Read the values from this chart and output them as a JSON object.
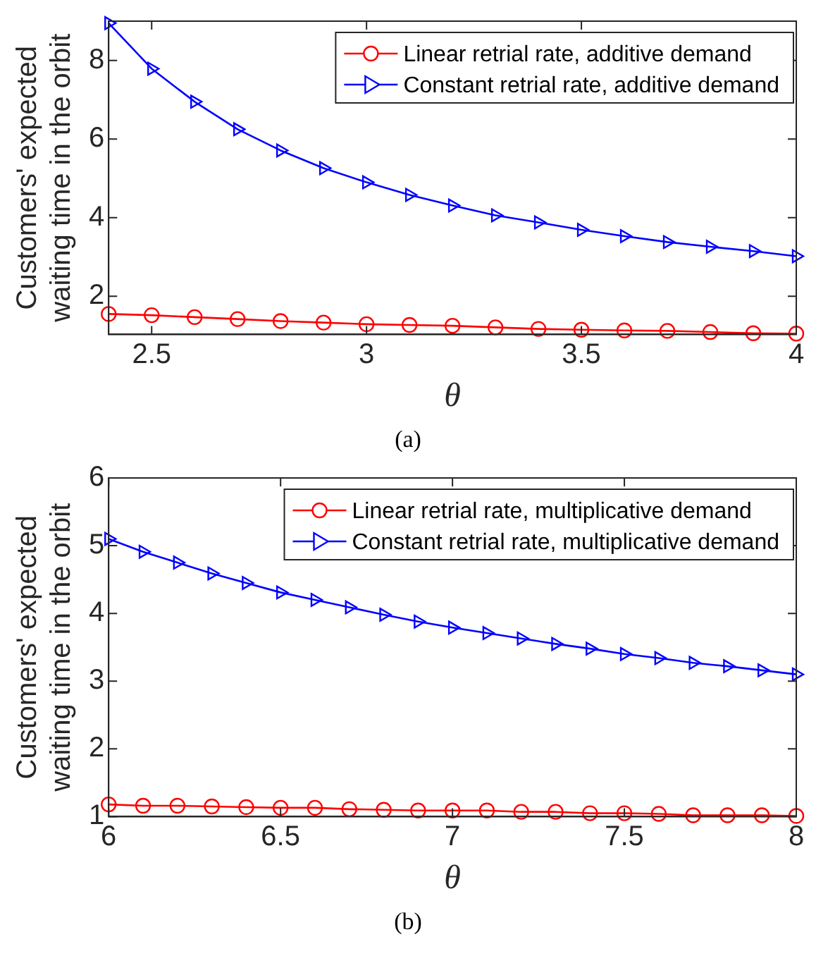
{
  "chart_data": [
    {
      "type": "line",
      "xlabel": "θ",
      "ylabel": "Customers' expected waiting time in the orbit",
      "annotations": [
        "(a)"
      ],
      "x": [
        2.4,
        2.5,
        2.6,
        2.7,
        2.8,
        2.9,
        3.0,
        3.1,
        3.2,
        3.3,
        3.4,
        3.5,
        3.6,
        3.7,
        3.8,
        3.9,
        4.0
      ],
      "xlim": [
        2.4,
        4
      ],
      "xticks": [
        2.5,
        3,
        3.5,
        4
      ],
      "ylim": [
        1.03,
        9
      ],
      "yticks": [
        2,
        4,
        6,
        8
      ],
      "grid": false,
      "legend": "top right",
      "line_style": "solid",
      "series": [
        {
          "name": "Linear retrial rate, additive demand",
          "color": "#ff0000",
          "marker": "circle",
          "values": [
            1.55,
            1.52,
            1.47,
            1.42,
            1.37,
            1.33,
            1.29,
            1.27,
            1.25,
            1.21,
            1.17,
            1.15,
            1.13,
            1.12,
            1.09,
            1.06,
            1.05
          ]
        },
        {
          "name": "Constant retrial rate, additive demand",
          "color": "#0000ff",
          "marker": "triangle",
          "values": [
            8.95,
            7.79,
            6.95,
            6.25,
            5.71,
            5.26,
            4.9,
            4.58,
            4.31,
            4.06,
            3.88,
            3.69,
            3.53,
            3.38,
            3.26,
            3.15,
            3.02
          ]
        }
      ]
    },
    {
      "type": "line",
      "xlabel": "θ",
      "ylabel": "Customers' expected waiting time in the orbit",
      "annotations": [
        "(b)"
      ],
      "x": [
        6.0,
        6.1,
        6.2,
        6.3,
        6.4,
        6.5,
        6.6,
        6.7,
        6.8,
        6.9,
        7.0,
        7.1,
        7.2,
        7.3,
        7.4,
        7.5,
        7.6,
        7.7,
        7.8,
        7.9,
        8.0
      ],
      "xlim": [
        6,
        8
      ],
      "xticks": [
        6,
        6.5,
        7,
        7.5,
        8
      ],
      "ylim": [
        1,
        6
      ],
      "yticks": [
        1,
        2,
        3,
        4,
        5,
        6
      ],
      "grid": false,
      "legend": "top right",
      "line_style": "solid",
      "series": [
        {
          "name": "Linear retrial rate, multiplicative demand",
          "color": "#ff0000",
          "marker": "circle",
          "values": [
            1.18,
            1.16,
            1.16,
            1.15,
            1.14,
            1.13,
            1.13,
            1.11,
            1.1,
            1.09,
            1.09,
            1.09,
            1.07,
            1.07,
            1.05,
            1.05,
            1.04,
            1.02,
            1.02,
            1.02,
            1.01
          ]
        },
        {
          "name": "Constant retrial rate, multiplicative demand",
          "color": "#0000ff",
          "marker": "triangle",
          "values": [
            5.1,
            4.91,
            4.75,
            4.59,
            4.45,
            4.31,
            4.2,
            4.09,
            3.98,
            3.88,
            3.79,
            3.71,
            3.63,
            3.55,
            3.48,
            3.4,
            3.34,
            3.27,
            3.22,
            3.16,
            3.1
          ]
        }
      ]
    }
  ]
}
